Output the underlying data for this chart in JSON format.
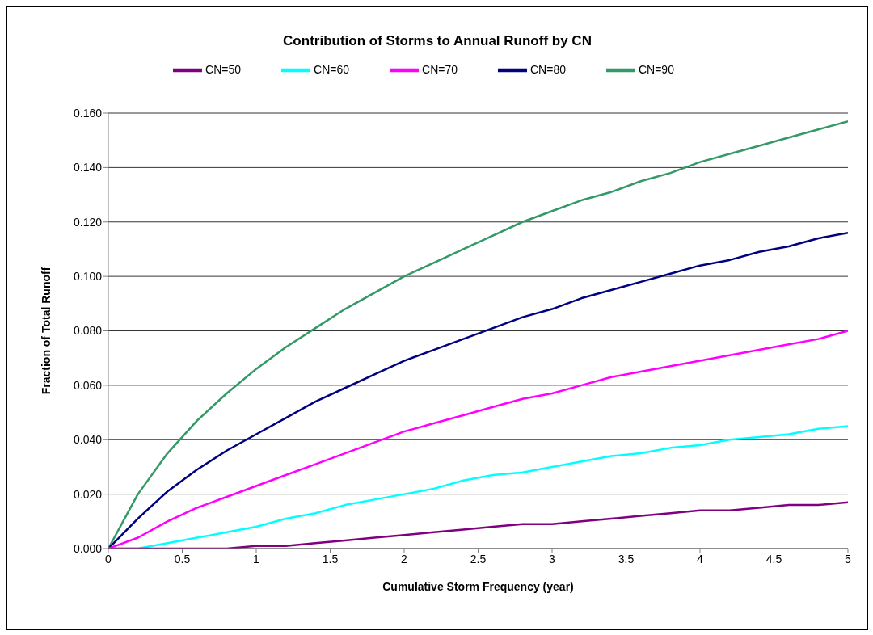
{
  "chart_data": {
    "type": "line",
    "title": "Contribution of Storms to Annual Runoff by CN",
    "xlabel": "Cumulative Storm Frequency (year)",
    "ylabel": "Fraction of Total Runoff",
    "x": [
      0,
      0.2,
      0.4,
      0.6,
      0.8,
      1.0,
      1.2,
      1.4,
      1.6,
      1.8,
      2.0,
      2.2,
      2.4,
      2.6,
      2.8,
      3.0,
      3.2,
      3.4,
      3.6,
      3.8,
      4.0,
      4.2,
      4.4,
      4.6,
      4.8,
      5.0
    ],
    "series": [
      {
        "name": "CN=90",
        "color": "#339966",
        "values": [
          0,
          0.02,
          0.035,
          0.047,
          0.057,
          0.066,
          0.074,
          0.081,
          0.088,
          0.094,
          0.1,
          0.105,
          0.11,
          0.115,
          0.12,
          0.124,
          0.128,
          0.131,
          0.135,
          0.138,
          0.142,
          0.145,
          0.148,
          0.151,
          0.154,
          0.157
        ]
      },
      {
        "name": "CN=80",
        "color": "#000080",
        "values": [
          0,
          0.011,
          0.021,
          0.029,
          0.036,
          0.042,
          0.048,
          0.054,
          0.059,
          0.064,
          0.069,
          0.073,
          0.077,
          0.081,
          0.085,
          0.088,
          0.092,
          0.095,
          0.098,
          0.101,
          0.104,
          0.106,
          0.109,
          0.111,
          0.114,
          0.116
        ]
      },
      {
        "name": "CN=70",
        "color": "#ff00ff",
        "values": [
          0,
          0.004,
          0.01,
          0.015,
          0.019,
          0.023,
          0.027,
          0.031,
          0.035,
          0.039,
          0.043,
          0.046,
          0.049,
          0.052,
          0.055,
          0.057,
          0.06,
          0.063,
          0.065,
          0.067,
          0.069,
          0.071,
          0.073,
          0.075,
          0.077,
          0.08
        ]
      },
      {
        "name": "CN=60",
        "color": "#00ffff",
        "values": [
          0,
          0.0,
          0.002,
          0.004,
          0.006,
          0.008,
          0.011,
          0.013,
          0.016,
          0.018,
          0.02,
          0.022,
          0.025,
          0.027,
          0.028,
          0.03,
          0.032,
          0.034,
          0.035,
          0.037,
          0.038,
          0.04,
          0.041,
          0.042,
          0.044,
          0.045
        ]
      },
      {
        "name": "CN=50",
        "color": "#800080",
        "values": [
          0,
          0,
          0,
          0,
          0.0,
          0.001,
          0.001,
          0.002,
          0.003,
          0.004,
          0.005,
          0.006,
          0.007,
          0.008,
          0.009,
          0.009,
          0.01,
          0.011,
          0.012,
          0.013,
          0.014,
          0.014,
          0.015,
          0.016,
          0.016,
          0.017
        ]
      }
    ],
    "xlim": [
      0,
      5
    ],
    "xticks": [
      0,
      0.5,
      1,
      1.5,
      2,
      2.5,
      3,
      3.5,
      4,
      4.5,
      5
    ],
    "ylim": [
      0,
      0.16
    ],
    "yticks": [
      {
        "value": 0,
        "label": "0.000"
      },
      {
        "value": 0.02,
        "label": "0.020"
      },
      {
        "value": 0.04,
        "label": "0.040"
      },
      {
        "value": 0.06,
        "label": "0.060"
      },
      {
        "value": 0.08,
        "label": "0.080"
      },
      {
        "value": 0.1,
        "label": "0.100"
      },
      {
        "value": 0.12,
        "label": "0.120"
      },
      {
        "value": 0.14,
        "label": "0.140"
      },
      {
        "value": 0.16,
        "label": "0.160"
      }
    ],
    "grid": "y",
    "legend": "top",
    "marker": "none",
    "line_style": "solid"
  }
}
